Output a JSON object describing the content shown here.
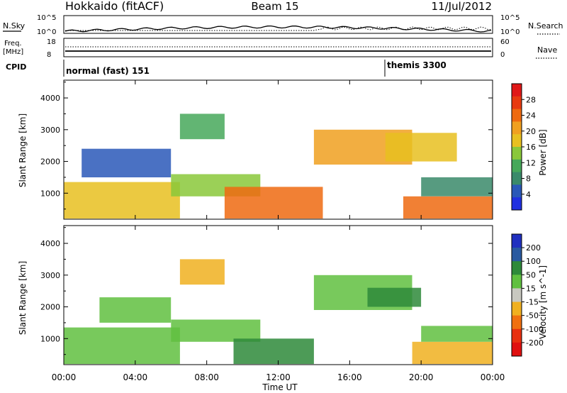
{
  "header": {
    "station": "Hokkaido (fitACF)",
    "beam": "Beam 15",
    "date": "11/Jul/2012"
  },
  "noise_panel": {
    "left_label": "N.Sky",
    "right_label": "N.Search",
    "left_ticks": [
      "10^5",
      "10^0"
    ],
    "right_ticks": [
      "10^5",
      "10^0"
    ]
  },
  "freq_panel": {
    "left_label_line1": "Freq.",
    "left_label_line2": "[MHz]",
    "right_label": "Nave",
    "left_ticks": [
      "18",
      "8"
    ],
    "right_ticks": [
      "60",
      "0"
    ]
  },
  "cpid_panel": {
    "label": "CPID",
    "modes": [
      {
        "name": "normal (fast) 151",
        "start_hour": 0
      },
      {
        "name": "themis 3300",
        "start_hour": 18
      }
    ]
  },
  "time_axis": {
    "label": "Time UT",
    "ticks": [
      "00:00",
      "04:00",
      "08:00",
      "12:00",
      "16:00",
      "20:00",
      "00:00"
    ]
  },
  "chart_data": [
    {
      "type": "heatmap",
      "quantity": "Power",
      "ylabel": "Slant Range [km]",
      "colorbar_label": "Power [dB]",
      "yticks": [
        "1000",
        "2000",
        "3000",
        "4000"
      ],
      "ylim": [
        180,
        4560
      ],
      "xlim_hours": [
        0,
        24
      ],
      "colorbar_ticks": [
        "4",
        "8",
        "12",
        "16",
        "20",
        "24",
        "28"
      ],
      "colorbar_colors": [
        "#2030e0",
        "#2a58b8",
        "#3a8a6a",
        "#46a85a",
        "#8ac83a",
        "#e8c020",
        "#f0a020",
        "#ee6a10",
        "#e83a10",
        "#e01818"
      ],
      "regions": [
        {
          "t_start": 0.0,
          "t_end": 6.5,
          "r_start": 200,
          "r_end": 1350,
          "value": 18
        },
        {
          "t_start": 1.0,
          "t_end": 6.0,
          "r_start": 1500,
          "r_end": 2400,
          "value": 6
        },
        {
          "t_start": 6.0,
          "t_end": 11.0,
          "r_start": 900,
          "r_end": 1600,
          "value": 14
        },
        {
          "t_start": 6.5,
          "t_end": 9.0,
          "r_start": 2700,
          "r_end": 3500,
          "value": 10
        },
        {
          "t_start": 9.0,
          "t_end": 14.5,
          "r_start": 200,
          "r_end": 1200,
          "value": 24
        },
        {
          "t_start": 14.0,
          "t_end": 19.5,
          "r_start": 1900,
          "r_end": 3000,
          "value": 22
        },
        {
          "t_start": 18.0,
          "t_end": 22.0,
          "r_start": 2000,
          "r_end": 2900,
          "value": 16
        },
        {
          "t_start": 19.0,
          "t_end": 24.0,
          "r_start": 200,
          "r_end": 900,
          "value": 25
        },
        {
          "t_start": 20.0,
          "t_end": 24.0,
          "r_start": 900,
          "r_end": 1500,
          "value": 8
        }
      ]
    },
    {
      "type": "heatmap",
      "quantity": "Velocity",
      "ylabel": "Slant Range [km]",
      "colorbar_label": "Velocity [m s^-1]",
      "yticks": [
        "1000",
        "2000",
        "3000",
        "4000"
      ],
      "ylim": [
        180,
        4560
      ],
      "xlim_hours": [
        0,
        24
      ],
      "colorbar_ticks": [
        "200",
        "100",
        "50",
        "15",
        "-15",
        "-50",
        "-100",
        "-200"
      ],
      "colorbar_colors": [
        "#2030c0",
        "#2a5aa0",
        "#2e8a3a",
        "#60c040",
        "#c8c8c0",
        "#f0b020",
        "#f07010",
        "#e83010",
        "#e01010"
      ],
      "regions": [
        {
          "t_start": 0.0,
          "t_end": 6.5,
          "r_start": 200,
          "r_end": 1350,
          "value": 0
        },
        {
          "t_start": 2.0,
          "t_end": 6.0,
          "r_start": 1500,
          "r_end": 2300,
          "value": 5
        },
        {
          "t_start": 6.0,
          "t_end": 11.0,
          "r_start": 900,
          "r_end": 1600,
          "value": 0
        },
        {
          "t_start": 6.5,
          "t_end": 9.0,
          "r_start": 2700,
          "r_end": 3500,
          "value": -40
        },
        {
          "t_start": 9.5,
          "t_end": 14.0,
          "r_start": 200,
          "r_end": 1000,
          "value": 60
        },
        {
          "t_start": 14.0,
          "t_end": 19.5,
          "r_start": 1900,
          "r_end": 3000,
          "value": 0
        },
        {
          "t_start": 17.0,
          "t_end": 20.0,
          "r_start": 2000,
          "r_end": 2600,
          "value": 60
        },
        {
          "t_start": 19.5,
          "t_end": 24.0,
          "r_start": 200,
          "r_end": 900,
          "value": -40
        },
        {
          "t_start": 20.0,
          "t_end": 24.0,
          "r_start": 900,
          "r_end": 1400,
          "value": 0
        }
      ]
    }
  ]
}
